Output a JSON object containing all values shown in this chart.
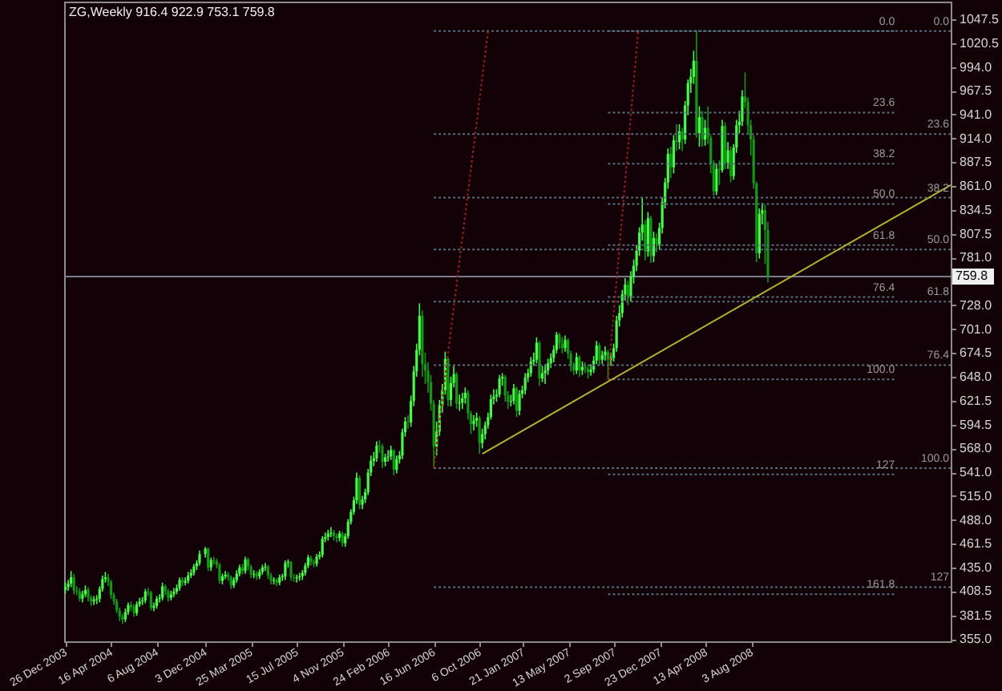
{
  "chart_data": {
    "type": "candlestick",
    "title": "ZG,Weekly  916.4 922.9 753.1 759.8",
    "x": [
      "2003-12-26",
      "2004-01-02",
      "2004-01-09",
      "2004-01-16",
      "2004-01-23",
      "2004-01-30",
      "2004-02-06",
      "2004-02-13",
      "2004-02-20",
      "2004-02-27",
      "2004-03-05",
      "2004-03-12",
      "2004-03-19",
      "2004-03-26",
      "2004-04-02",
      "2004-04-09",
      "2004-04-16",
      "2004-04-23",
      "2004-04-30",
      "2004-05-07",
      "2004-05-14",
      "2004-05-21",
      "2004-05-28",
      "2004-06-04",
      "2004-06-11",
      "2004-06-18",
      "2004-06-25",
      "2004-07-02",
      "2004-07-09",
      "2004-07-16",
      "2004-07-23",
      "2004-07-30",
      "2004-08-06",
      "2004-08-13",
      "2004-08-20",
      "2004-08-27",
      "2004-09-03",
      "2004-09-10",
      "2004-09-17",
      "2004-09-24",
      "2004-10-01",
      "2004-10-08",
      "2004-10-15",
      "2004-10-22",
      "2004-10-29",
      "2004-11-05",
      "2004-11-12",
      "2004-11-19",
      "2004-12-03",
      "2004-12-10",
      "2004-12-17",
      "2004-12-24",
      "2004-12-31",
      "2005-01-07",
      "2005-01-14",
      "2005-01-21",
      "2005-01-28",
      "2005-02-04",
      "2005-02-11",
      "2005-02-18",
      "2005-02-25",
      "2005-03-04",
      "2005-03-11",
      "2005-03-18",
      "2005-03-25",
      "2005-04-01",
      "2005-04-08",
      "2005-04-15",
      "2005-04-22",
      "2005-04-29",
      "2005-05-06",
      "2005-05-13",
      "2005-05-20",
      "2005-05-27",
      "2005-06-03",
      "2005-06-10",
      "2005-06-17",
      "2005-06-24",
      "2005-07-01",
      "2005-07-08",
      "2005-07-15",
      "2005-07-22",
      "2005-07-29",
      "2005-08-05",
      "2005-08-12",
      "2005-08-19",
      "2005-08-26",
      "2005-09-02",
      "2005-09-09",
      "2005-09-16",
      "2005-09-23",
      "2005-09-30",
      "2005-10-07",
      "2005-10-14",
      "2005-10-21",
      "2005-10-28",
      "2005-11-04",
      "2005-11-11",
      "2005-11-18",
      "2005-11-25",
      "2005-12-02",
      "2005-12-09",
      "2005-12-16",
      "2005-12-23",
      "2005-12-30",
      "2006-01-06",
      "2006-01-13",
      "2006-01-20",
      "2006-01-27",
      "2006-02-03",
      "2006-02-10",
      "2006-02-17",
      "2006-02-24",
      "2006-03-03",
      "2006-03-10",
      "2006-03-17",
      "2006-03-24",
      "2006-03-31",
      "2006-04-07",
      "2006-04-14",
      "2006-04-21",
      "2006-04-28",
      "2006-05-05",
      "2006-05-12",
      "2006-05-19",
      "2006-05-26",
      "2006-06-02",
      "2006-06-09",
      "2006-06-16",
      "2006-06-23",
      "2006-06-30",
      "2006-07-07",
      "2006-07-14",
      "2006-07-21",
      "2006-07-28",
      "2006-08-04",
      "2006-08-11",
      "2006-08-18",
      "2006-08-25",
      "2006-09-01",
      "2006-09-08",
      "2006-09-15",
      "2006-09-22",
      "2006-09-29",
      "2006-10-06",
      "2006-10-13",
      "2006-10-20",
      "2006-10-27",
      "2006-11-03",
      "2006-11-10",
      "2006-11-17",
      "2006-11-24",
      "2006-12-01",
      "2006-12-08",
      "2006-12-15",
      "2006-12-22",
      "2006-12-29",
      "2007-01-05",
      "2007-01-12",
      "2007-01-19",
      "2007-01-26",
      "2007-02-02",
      "2007-02-09",
      "2007-02-16",
      "2007-02-23",
      "2007-03-02",
      "2007-03-09",
      "2007-03-16",
      "2007-03-23",
      "2007-03-30",
      "2007-04-06",
      "2007-04-13",
      "2007-04-20",
      "2007-04-27",
      "2007-05-04",
      "2007-05-11",
      "2007-05-18",
      "2007-05-25",
      "2007-06-01",
      "2007-06-08",
      "2007-06-15",
      "2007-06-22",
      "2007-06-29",
      "2007-07-06",
      "2007-07-13",
      "2007-07-20",
      "2007-07-27",
      "2007-08-03",
      "2007-08-10",
      "2007-08-17",
      "2007-08-24",
      "2007-08-31",
      "2007-09-07",
      "2007-09-14",
      "2007-09-21",
      "2007-09-28",
      "2007-10-05",
      "2007-10-12",
      "2007-10-19",
      "2007-10-26",
      "2007-11-02",
      "2007-11-09",
      "2007-11-16",
      "2007-11-23",
      "2007-11-30",
      "2007-12-07",
      "2007-12-14",
      "2007-12-21",
      "2007-12-28",
      "2008-01-04",
      "2008-01-11",
      "2008-01-18",
      "2008-01-25",
      "2008-02-01",
      "2008-02-08",
      "2008-02-15",
      "2008-02-22",
      "2008-02-29",
      "2008-03-07",
      "2008-03-14",
      "2008-03-21",
      "2008-03-28",
      "2008-04-04",
      "2008-04-11",
      "2008-04-18",
      "2008-04-25",
      "2008-05-02",
      "2008-05-09",
      "2008-05-16",
      "2008-05-23",
      "2008-05-30",
      "2008-06-06",
      "2008-06-13",
      "2008-06-20",
      "2008-06-27",
      "2008-07-04",
      "2008-07-11",
      "2008-07-18",
      "2008-07-25",
      "2008-08-01",
      "2008-08-08",
      "2008-08-15",
      "2008-08-22",
      "2008-08-29",
      "2008-09-05",
      "2008-09-12"
    ],
    "ohlc": [
      [
        410,
        418,
        406,
        413
      ],
      [
        413,
        421,
        409,
        417
      ],
      [
        417,
        431,
        413,
        424
      ],
      [
        424,
        428,
        405,
        409
      ],
      [
        409,
        414,
        404,
        408
      ],
      [
        408,
        412,
        397,
        400
      ],
      [
        400,
        409,
        396,
        405
      ],
      [
        405,
        415,
        402,
        410
      ],
      [
        410,
        413,
        397,
        401
      ],
      [
        401,
        404,
        392,
        397
      ],
      [
        397,
        403,
        393,
        399
      ],
      [
        399,
        404,
        394,
        400
      ],
      [
        400,
        414,
        396,
        411
      ],
      [
        411,
        426,
        408,
        422
      ],
      [
        422,
        430,
        418,
        424
      ],
      [
        424,
        428,
        414,
        419
      ],
      [
        419,
        421,
        400,
        404
      ],
      [
        404,
        407,
        393,
        397
      ],
      [
        397,
        400,
        384,
        387
      ],
      [
        387,
        390,
        375,
        380
      ],
      [
        380,
        383,
        372,
        377
      ],
      [
        377,
        389,
        374,
        385
      ],
      [
        385,
        396,
        382,
        393
      ],
      [
        393,
        397,
        387,
        391
      ],
      [
        391,
        394,
        380,
        384
      ],
      [
        384,
        397,
        381,
        394
      ],
      [
        394,
        401,
        391,
        397
      ],
      [
        397,
        402,
        393,
        398
      ],
      [
        398,
        411,
        395,
        408
      ],
      [
        408,
        412,
        403,
        407
      ],
      [
        407,
        409,
        387,
        390
      ],
      [
        390,
        396,
        386,
        392
      ],
      [
        392,
        403,
        389,
        400
      ],
      [
        400,
        405,
        396,
        401
      ],
      [
        401,
        418,
        398,
        414
      ],
      [
        414,
        416,
        404,
        408
      ],
      [
        408,
        411,
        397,
        401
      ],
      [
        401,
        409,
        398,
        405
      ],
      [
        405,
        412,
        402,
        408
      ],
      [
        408,
        416,
        405,
        412
      ],
      [
        412,
        424,
        409,
        421
      ],
      [
        421,
        424,
        414,
        418
      ],
      [
        418,
        424,
        415,
        420
      ],
      [
        420,
        430,
        417,
        426
      ],
      [
        426,
        433,
        423,
        429
      ],
      [
        429,
        439,
        426,
        436
      ],
      [
        436,
        443,
        432,
        440
      ],
      [
        440,
        454,
        437,
        450
      ],
      [
        450,
        458,
        446,
        456
      ],
      [
        456,
        457,
        431,
        435
      ],
      [
        435,
        446,
        431,
        443
      ],
      [
        443,
        447,
        438,
        442
      ],
      [
        442,
        445,
        434,
        438
      ],
      [
        438,
        440,
        417,
        420
      ],
      [
        420,
        428,
        416,
        425
      ],
      [
        425,
        431,
        422,
        427
      ],
      [
        427,
        430,
        420,
        424
      ],
      [
        424,
        426,
        411,
        415
      ],
      [
        415,
        424,
        412,
        421
      ],
      [
        421,
        432,
        418,
        428
      ],
      [
        428,
        438,
        425,
        435
      ],
      [
        435,
        439,
        427,
        431
      ],
      [
        431,
        447,
        428,
        444
      ],
      [
        444,
        446,
        432,
        436
      ],
      [
        436,
        438,
        423,
        427
      ],
      [
        427,
        432,
        423,
        428
      ],
      [
        428,
        431,
        421,
        425
      ],
      [
        425,
        433,
        422,
        430
      ],
      [
        430,
        438,
        427,
        435
      ],
      [
        435,
        440,
        431,
        436
      ],
      [
        436,
        438,
        422,
        426
      ],
      [
        426,
        429,
        416,
        420
      ],
      [
        420,
        424,
        416,
        421
      ],
      [
        421,
        423,
        414,
        418
      ],
      [
        418,
        427,
        415,
        424
      ],
      [
        424,
        428,
        420,
        425
      ],
      [
        425,
        443,
        421,
        440
      ],
      [
        440,
        444,
        435,
        441
      ],
      [
        441,
        442,
        420,
        424
      ],
      [
        424,
        428,
        419,
        423
      ],
      [
        423,
        427,
        418,
        424
      ],
      [
        424,
        429,
        420,
        425
      ],
      [
        425,
        432,
        421,
        429
      ],
      [
        429,
        440,
        426,
        437
      ],
      [
        437,
        449,
        434,
        446
      ],
      [
        446,
        448,
        437,
        441
      ],
      [
        441,
        444,
        435,
        439
      ],
      [
        439,
        450,
        436,
        447
      ],
      [
        447,
        453,
        444,
        449
      ],
      [
        449,
        470,
        446,
        467
      ],
      [
        467,
        474,
        463,
        469
      ],
      [
        469,
        477,
        465,
        473
      ],
      [
        473,
        480,
        469,
        474
      ],
      [
        474,
        477,
        465,
        470
      ],
      [
        470,
        473,
        463,
        468
      ],
      [
        468,
        476,
        464,
        473
      ],
      [
        473,
        475,
        458,
        462
      ],
      [
        462,
        473,
        458,
        470
      ],
      [
        470,
        489,
        467,
        486
      ],
      [
        486,
        500,
        483,
        497
      ],
      [
        497,
        514,
        494,
        510
      ],
      [
        510,
        541,
        506,
        535
      ],
      [
        535,
        538,
        500,
        505
      ],
      [
        505,
        515,
        500,
        511
      ],
      [
        511,
        523,
        507,
        519
      ],
      [
        519,
        545,
        516,
        541
      ],
      [
        541,
        560,
        537,
        554
      ],
      [
        554,
        564,
        548,
        557
      ],
      [
        557,
        576,
        553,
        571
      ],
      [
        571,
        577,
        563,
        570
      ],
      [
        570,
        573,
        546,
        553
      ],
      [
        553,
        562,
        548,
        558
      ],
      [
        558,
        566,
        553,
        559
      ],
      [
        559,
        571,
        555,
        566
      ],
      [
        566,
        567,
        538,
        544
      ],
      [
        544,
        560,
        540,
        556
      ],
      [
        556,
        565,
        551,
        560
      ],
      [
        560,
        590,
        556,
        586
      ],
      [
        586,
        603,
        581,
        598
      ],
      [
        598,
        605,
        590,
        597
      ],
      [
        597,
        627,
        592,
        621
      ],
      [
        621,
        660,
        615,
        654
      ],
      [
        654,
        685,
        648,
        678
      ],
      [
        678,
        730,
        672,
        716
      ],
      [
        716,
        722,
        648,
        662
      ],
      [
        662,
        675,
        640,
        655
      ],
      [
        655,
        664,
        630,
        642
      ],
      [
        642,
        650,
        610,
        618
      ],
      [
        618,
        622,
        546,
        570
      ],
      [
        570,
        598,
        560,
        587
      ],
      [
        587,
        622,
        582,
        616
      ],
      [
        616,
        640,
        608,
        633
      ],
      [
        633,
        676,
        628,
        668
      ],
      [
        668,
        670,
        615,
        622
      ],
      [
        622,
        648,
        615,
        641
      ],
      [
        641,
        660,
        636,
        651
      ],
      [
        651,
        653,
        612,
        618
      ],
      [
        618,
        628,
        610,
        619
      ],
      [
        619,
        630,
        612,
        624
      ],
      [
        624,
        636,
        618,
        630
      ],
      [
        630,
        633,
        600,
        607
      ],
      [
        607,
        610,
        584,
        595
      ],
      [
        595,
        605,
        588,
        599
      ],
      [
        599,
        608,
        592,
        602
      ],
      [
        602,
        604,
        562,
        574
      ],
      [
        574,
        590,
        568,
        584
      ],
      [
        584,
        598,
        578,
        594
      ],
      [
        594,
        608,
        590,
        603
      ],
      [
        603,
        628,
        600,
        623
      ],
      [
        623,
        634,
        617,
        626
      ],
      [
        626,
        634,
        620,
        628
      ],
      [
        628,
        650,
        625,
        646
      ],
      [
        646,
        652,
        638,
        648
      ],
      [
        648,
        650,
        620,
        627
      ],
      [
        627,
        632,
        612,
        620
      ],
      [
        620,
        628,
        615,
        621
      ],
      [
        621,
        640,
        617,
        635
      ],
      [
        635,
        637,
        603,
        610
      ],
      [
        610,
        633,
        605,
        629
      ],
      [
        629,
        638,
        624,
        633
      ],
      [
        633,
        652,
        628,
        647
      ],
      [
        647,
        657,
        642,
        652
      ],
      [
        652,
        670,
        648,
        665
      ],
      [
        665,
        675,
        660,
        667
      ],
      [
        667,
        692,
        663,
        686
      ],
      [
        686,
        688,
        638,
        646
      ],
      [
        646,
        660,
        642,
        652
      ],
      [
        652,
        662,
        640,
        655
      ],
      [
        655,
        668,
        650,
        663
      ],
      [
        663,
        674,
        658,
        669
      ],
      [
        669,
        683,
        664,
        678
      ],
      [
        678,
        698,
        674,
        695
      ],
      [
        695,
        697,
        679,
        685
      ],
      [
        685,
        692,
        674,
        680
      ],
      [
        680,
        694,
        676,
        689
      ],
      [
        689,
        691,
        668,
        674
      ],
      [
        674,
        677,
        654,
        660
      ],
      [
        660,
        664,
        650,
        655
      ],
      [
        655,
        675,
        651,
        670
      ],
      [
        670,
        672,
        648,
        655
      ],
      [
        655,
        665,
        650,
        659
      ],
      [
        659,
        664,
        652,
        657
      ],
      [
        657,
        661,
        646,
        653
      ],
      [
        653,
        662,
        649,
        656
      ],
      [
        656,
        671,
        652,
        666
      ],
      [
        666,
        688,
        662,
        683
      ],
      [
        683,
        686,
        661,
        667
      ],
      [
        667,
        677,
        662,
        672
      ],
      [
        672,
        682,
        666,
        676
      ],
      [
        676,
        678,
        645,
        667
      ],
      [
        667,
        675,
        660,
        669
      ],
      [
        669,
        685,
        665,
        680
      ],
      [
        680,
        716,
        676,
        711
      ],
      [
        711,
        728,
        704,
        719
      ],
      [
        719,
        745,
        714,
        740
      ],
      [
        740,
        758,
        733,
        751
      ],
      [
        751,
        755,
        728,
        738
      ],
      [
        738,
        766,
        732,
        760
      ],
      [
        760,
        779,
        752,
        772
      ],
      [
        772,
        795,
        766,
        789
      ],
      [
        789,
        815,
        783,
        809
      ],
      [
        809,
        848,
        800,
        818
      ],
      [
        818,
        823,
        778,
        788
      ],
      [
        788,
        832,
        782,
        825
      ],
      [
        825,
        828,
        775,
        783
      ],
      [
        783,
        810,
        776,
        803
      ],
      [
        803,
        808,
        787,
        796
      ],
      [
        796,
        820,
        790,
        814
      ],
      [
        814,
        848,
        808,
        843
      ],
      [
        843,
        870,
        836,
        865
      ],
      [
        865,
        903,
        858,
        897
      ],
      [
        897,
        905,
        870,
        882
      ],
      [
        882,
        918,
        875,
        912
      ],
      [
        912,
        930,
        900,
        910
      ],
      [
        910,
        930,
        902,
        922
      ],
      [
        922,
        926,
        900,
        913
      ],
      [
        913,
        956,
        908,
        951
      ],
      [
        951,
        980,
        940,
        976
      ],
      [
        976,
        992,
        965,
        983
      ],
      [
        983,
        1012,
        975,
        1001
      ],
      [
        1001,
        1034,
        915,
        920
      ],
      [
        920,
        950,
        905,
        938
      ],
      [
        938,
        945,
        905,
        913
      ],
      [
        913,
        935,
        906,
        926
      ],
      [
        926,
        950,
        908,
        915
      ],
      [
        915,
        918,
        875,
        886
      ],
      [
        886,
        890,
        850,
        855
      ],
      [
        855,
        886,
        851,
        880
      ],
      [
        880,
        890,
        862,
        879
      ],
      [
        879,
        935,
        876,
        928
      ],
      [
        928,
        932,
        880,
        887
      ],
      [
        887,
        910,
        880,
        901
      ],
      [
        901,
        905,
        865,
        872
      ],
      [
        872,
        908,
        868,
        904
      ],
      [
        904,
        935,
        898,
        929
      ],
      [
        929,
        945,
        920,
        933
      ],
      [
        933,
        968,
        928,
        961
      ],
      [
        961,
        988,
        948,
        955
      ],
      [
        955,
        960,
        920,
        929
      ],
      [
        929,
        935,
        895,
        913
      ],
      [
        913,
        918,
        858,
        864
      ],
      [
        864,
        866,
        776,
        786
      ],
      [
        786,
        836,
        780,
        830
      ],
      [
        830,
        842,
        818,
        834
      ],
      [
        834,
        840,
        774,
        812
      ],
      [
        812,
        821,
        753.1,
        759.8
      ]
    ],
    "colors": [
      "#40ff40",
      "#40ff40",
      "#40ff40",
      "#109a10",
      "#109a10",
      "#109a10",
      "#40ff40",
      "#40ff40",
      "#109a10",
      "#109a10",
      "#40ff40",
      "#40ff40",
      "#40ff40",
      "#40ff40",
      "#40ff40",
      "#109a10",
      "#109a10",
      "#109a10",
      "#109a10",
      "#109a10",
      "#109a10",
      "#40ff40",
      "#40ff40",
      "#109a10",
      "#109a10",
      "#40ff40",
      "#40ff40",
      "#40ff40",
      "#40ff40",
      "#109a10",
      "#109a10",
      "#40ff40",
      "#40ff40",
      "#40ff40",
      "#40ff40",
      "#109a10",
      "#109a10",
      "#40ff40",
      "#40ff40",
      "#40ff40",
      "#40ff40",
      "#109a10",
      "#40ff40",
      "#40ff40",
      "#40ff40",
      "#40ff40",
      "#40ff40",
      "#40ff40",
      "#40ff40",
      "#109a10",
      "#40ff40",
      "#109a10",
      "#109a10",
      "#109a10",
      "#40ff40",
      "#40ff40",
      "#109a10",
      "#109a10",
      "#40ff40",
      "#40ff40",
      "#40ff40",
      "#109a10",
      "#40ff40",
      "#109a10",
      "#109a10",
      "#40ff40",
      "#109a10",
      "#40ff40",
      "#40ff40",
      "#40ff40",
      "#109a10",
      "#109a10",
      "#40ff40",
      "#109a10",
      "#40ff40",
      "#40ff40",
      "#40ff40",
      "#40ff40",
      "#109a10",
      "#109a10",
      "#40ff40",
      "#40ff40",
      "#40ff40",
      "#40ff40",
      "#40ff40",
      "#109a10",
      "#109a10",
      "#40ff40",
      "#40ff40",
      "#40ff40",
      "#40ff40",
      "#40ff40",
      "#40ff40",
      "#109a10",
      "#109a10",
      "#40ff40",
      "#109a10",
      "#40ff40",
      "#40ff40",
      "#40ff40",
      "#40ff40",
      "#40ff40",
      "#109a10",
      "#40ff40",
      "#40ff40",
      "#40ff40",
      "#40ff40",
      "#40ff40",
      "#40ff40",
      "#109a10",
      "#109a10",
      "#40ff40",
      "#40ff40",
      "#40ff40",
      "#109a10",
      "#40ff40",
      "#40ff40",
      "#40ff40",
      "#40ff40",
      "#109a10",
      "#40ff40",
      "#40ff40",
      "#40ff40",
      "#40ff40",
      "#109a10",
      "#109a10",
      "#109a10",
      "#109a10",
      "#109a10",
      "#40ff40",
      "#40ff40",
      "#40ff40",
      "#40ff40",
      "#109a10",
      "#40ff40",
      "#40ff40",
      "#109a10",
      "#40ff40",
      "#40ff40",
      "#40ff40",
      "#109a10",
      "#109a10",
      "#40ff40",
      "#40ff40",
      "#109a10",
      "#40ff40",
      "#40ff40",
      "#40ff40",
      "#40ff40",
      "#40ff40",
      "#40ff40",
      "#40ff40",
      "#40ff40",
      "#109a10",
      "#109a10",
      "#40ff40",
      "#40ff40",
      "#109a10",
      "#40ff40",
      "#40ff40",
      "#40ff40",
      "#40ff40",
      "#40ff40",
      "#40ff40",
      "#40ff40",
      "#109a10",
      "#40ff40",
      "#40ff40",
      "#40ff40",
      "#40ff40",
      "#40ff40",
      "#40ff40",
      "#109a10",
      "#109a10",
      "#40ff40",
      "#109a10",
      "#109a10",
      "#109a10",
      "#40ff40",
      "#109a10",
      "#40ff40",
      "#109a10",
      "#109a10",
      "#40ff40",
      "#40ff40",
      "#40ff40",
      "#109a10",
      "#40ff40",
      "#40ff40",
      "#109a10",
      "#40ff40",
      "#40ff40",
      "#40ff40",
      "#40ff40",
      "#40ff40",
      "#40ff40",
      "#109a10",
      "#40ff40",
      "#40ff40",
      "#40ff40",
      "#40ff40",
      "#40ff40",
      "#109a10",
      "#40ff40",
      "#109a10",
      "#40ff40",
      "#109a10",
      "#40ff40",
      "#40ff40",
      "#40ff40",
      "#40ff40",
      "#109a10",
      "#40ff40",
      "#109a10",
      "#40ff40",
      "#109a10",
      "#40ff40",
      "#40ff40",
      "#40ff40",
      "#40ff40",
      "#109a10",
      "#40ff40",
      "#109a10",
      "#40ff40",
      "#109a10",
      "#109a10",
      "#109a10",
      "#40ff40",
      "#109a10",
      "#40ff40",
      "#109a10",
      "#40ff40",
      "#109a10",
      "#40ff40",
      "#40ff40",
      "#40ff40",
      "#40ff40",
      "#109a10",
      "#109a10",
      "#109a10",
      "#109a10",
      "#109a10",
      "#40ff40",
      "#40ff40",
      "#109a10",
      "#109a10"
    ],
    "xlim": [
      "2003-12-23",
      "2009-12-04"
    ],
    "xticks": [
      {
        "value": "2003-12-26",
        "label": "26 Dec 2003"
      },
      {
        "value": "2004-04-16",
        "label": "16 Apr 2004"
      },
      {
        "value": "2004-08-06",
        "label": "6 Aug 2004"
      },
      {
        "value": "2004-12-03",
        "label": "3 Dec 2004"
      },
      {
        "value": "2005-03-25",
        "label": "25 Mar 2005"
      },
      {
        "value": "2005-07-15",
        "label": "15 Jul 2005"
      },
      {
        "value": "2005-11-04",
        "label": "4 Nov 2005"
      },
      {
        "value": "2006-02-24",
        "label": "24 Feb 2006"
      },
      {
        "value": "2006-06-16",
        "label": "16 Jun 2006"
      },
      {
        "value": "2006-10-06",
        "label": "6 Oct 2006"
      },
      {
        "value": "2007-01-21",
        "label": "21 Jan 2007"
      },
      {
        "value": "2007-05-13",
        "label": "13 May 2007"
      },
      {
        "value": "2007-09-02",
        "label": "2 Sep 2007"
      },
      {
        "value": "2007-12-23",
        "label": "23 Dec 2007"
      },
      {
        "value": "2008-04-13",
        "label": "13 Apr 2008"
      },
      {
        "value": "2008-08-03",
        "label": "3 Aug 2008"
      }
    ],
    "ylim": [
      352.5,
      1067
    ],
    "yticks": [
      1047.5,
      1020.5,
      {
        "value": 994,
        "label": "994.0"
      },
      967.5,
      {
        "value": 941,
        "label": "941.0"
      },
      {
        "value": 914,
        "label": "914.0"
      },
      887.5,
      {
        "value": 861,
        "label": "861.0"
      },
      834.5,
      807.5,
      {
        "value": 781,
        "label": "781.0"
      },
      {
        "value": 728,
        "label": "728.0"
      },
      {
        "value": 701,
        "label": "701.0"
      },
      674.5,
      {
        "value": 648,
        "label": "648.0"
      },
      621.5,
      594.5,
      {
        "value": 568,
        "label": "568.0"
      },
      {
        "value": 541,
        "label": "541.0"
      },
      {
        "value": 515,
        "label": "515.0"
      },
      {
        "value": 488,
        "label": "488.0"
      },
      461.5,
      {
        "value": 435,
        "label": "435.0"
      },
      408.5,
      381.5,
      {
        "value": 355,
        "label": "355.0"
      }
    ],
    "series": [
      {
        "type": "line",
        "name": "0.0",
        "x": [
          "2007-08-17",
          "2009-07-24"
        ],
        "values": [
          1034,
          1034
        ],
        "color": "#56707c",
        "line_style": "dotted"
      },
      {
        "type": "line",
        "name": "23.6",
        "x": [
          "2007-08-17",
          "2009-07-24"
        ],
        "values": [
          943,
          943
        ],
        "color": "#56707c",
        "line_style": "dotted"
      },
      {
        "type": "line",
        "name": "38.2",
        "x": [
          "2007-08-17",
          "2009-07-24"
        ],
        "values": [
          886,
          886
        ],
        "color": "#56707c",
        "line_style": "dotted"
      },
      {
        "type": "line",
        "name": "50.0",
        "x": [
          "2007-08-17",
          "2009-07-24"
        ],
        "values": [
          841,
          841
        ],
        "color": "#56707c",
        "line_style": "dotted"
      },
      {
        "type": "line",
        "name": "61.8",
        "x": [
          "2007-08-17",
          "2009-07-24"
        ],
        "values": [
          795,
          795
        ],
        "color": "#56707c",
        "line_style": "dotted"
      },
      {
        "type": "line",
        "name": "76.4",
        "x": [
          "2007-08-17",
          "2009-07-24"
        ],
        "values": [
          737,
          737
        ],
        "color": "#56707c",
        "line_style": "dotted"
      },
      {
        "type": "line",
        "name": "100.0",
        "x": [
          "2007-08-17",
          "2009-07-24"
        ],
        "values": [
          645,
          645
        ],
        "color": "#56707c",
        "line_style": "dotted"
      },
      {
        "type": "line",
        "name": "127",
        "x": [
          "2007-08-17",
          "2009-07-24"
        ],
        "values": [
          539,
          539
        ],
        "color": "#56707c",
        "line_style": "dotted"
      },
      {
        "type": "line",
        "name": "161.8",
        "x": [
          "2007-08-17",
          "2009-07-24"
        ],
        "values": [
          405,
          405
        ],
        "color": "#56707c",
        "line_style": "dotted"
      },
      {
        "type": "line",
        "name": "0.0",
        "x": [
          "2006-06-16",
          "2009-12-04"
        ],
        "values": [
          1034,
          1034
        ],
        "color": "#56707c",
        "line_style": "dotted"
      },
      {
        "type": "line",
        "name": "23.6",
        "x": [
          "2006-06-16",
          "2009-12-04"
        ],
        "values": [
          919,
          919
        ],
        "color": "#56707c",
        "line_style": "dotted"
      },
      {
        "type": "line",
        "name": "38.2",
        "x": [
          "2006-06-16",
          "2009-12-04"
        ],
        "values": [
          848,
          848
        ],
        "color": "#56707c",
        "line_style": "dotted"
      },
      {
        "type": "line",
        "name": "50.0",
        "x": [
          "2006-06-16",
          "2009-12-04"
        ],
        "values": [
          790,
          790
        ],
        "color": "#56707c",
        "line_style": "dotted"
      },
      {
        "type": "line",
        "name": "61.8",
        "x": [
          "2006-06-16",
          "2009-12-04"
        ],
        "values": [
          732,
          732
        ],
        "color": "#56707c",
        "line_style": "dotted"
      },
      {
        "type": "line",
        "name": "76.4",
        "x": [
          "2006-06-16",
          "2009-12-04"
        ],
        "values": [
          661,
          661
        ],
        "color": "#56707c",
        "line_style": "dotted"
      },
      {
        "type": "line",
        "name": "100.0",
        "x": [
          "2006-06-16",
          "2009-12-04"
        ],
        "values": [
          546,
          546
        ],
        "color": "#56707c",
        "line_style": "dotted"
      },
      {
        "type": "line",
        "name": "127",
        "x": [
          "2006-06-16",
          "2009-12-04"
        ],
        "values": [
          413,
          413
        ],
        "color": "#56707c",
        "line_style": "dotted"
      },
      {
        "type": "line",
        "x": [
          "2006-10-13",
          "2009-12-04"
        ],
        "values": [
          562,
          862
        ],
        "color": "#b4b428"
      },
      {
        "type": "line",
        "x": [
          "2006-06-16",
          "2006-10-27"
        ],
        "values": [
          546,
          1034
        ],
        "color": "#a01818",
        "line_style": "dotted"
      },
      {
        "type": "line",
        "x": [
          "2007-08-17",
          "2007-10-30"
        ],
        "values": [
          645,
          1034
        ],
        "color": "#a01818",
        "line_style": "dotted"
      }
    ],
    "ref_lines": [
      {
        "axis": "y",
        "value": 759.8,
        "label": "759.8",
        "color": "#7c7c8c"
      }
    ]
  }
}
